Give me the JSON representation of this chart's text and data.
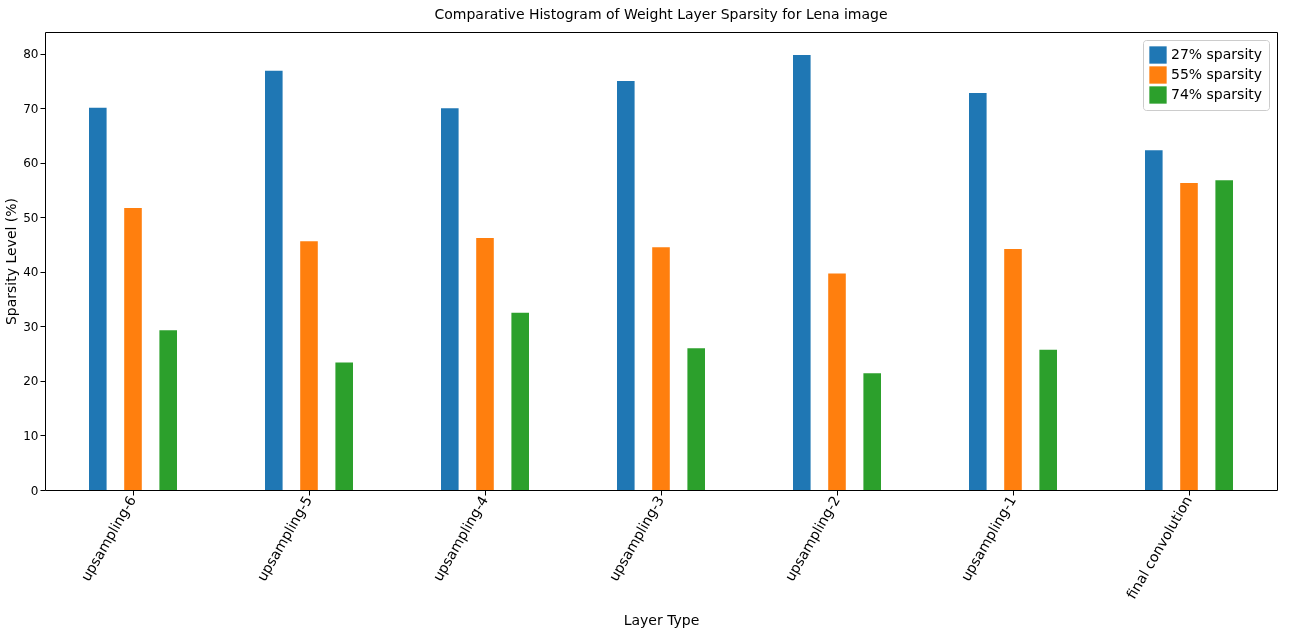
{
  "chart_data": {
    "type": "bar",
    "title": "Comparative Histogram of Weight Layer Sparsity for Lena image",
    "xlabel": "Layer Type",
    "ylabel": "Sparsity Level (%)",
    "categories": [
      "upsampling-6",
      "upsampling-5",
      "upsampling-4",
      "upsampling-3",
      "upsampling-2",
      "upsampling-1",
      "final convolution"
    ],
    "series": [
      {
        "name": "27% sparsity",
        "color": "#1f77b4",
        "values": [
          70.1,
          76.9,
          70.0,
          75.0,
          79.8,
          72.8,
          62.3
        ]
      },
      {
        "name": "55% sparsity",
        "color": "#ff7f0e",
        "values": [
          51.7,
          45.6,
          46.2,
          44.5,
          39.7,
          44.2,
          56.3
        ]
      },
      {
        "name": "74% sparsity",
        "color": "#2ca02c",
        "values": [
          29.3,
          23.4,
          32.5,
          26.0,
          21.4,
          25.7,
          56.8
        ]
      }
    ],
    "ylim": [
      0,
      84
    ],
    "yticks": [
      0,
      10,
      20,
      30,
      40,
      50,
      60,
      70,
      80
    ],
    "grid": false,
    "legend": "top right"
  }
}
